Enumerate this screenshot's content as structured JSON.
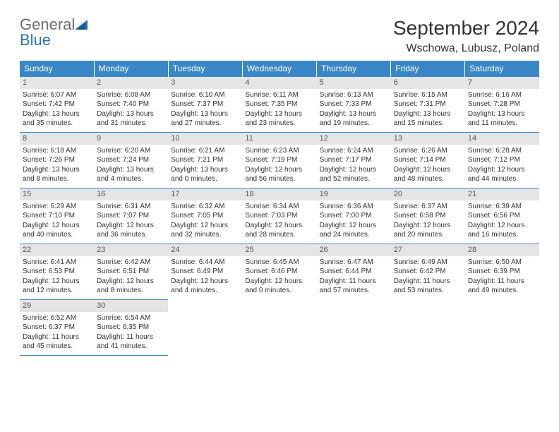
{
  "brand": {
    "part1": "General",
    "part2": "Blue"
  },
  "title": "September 2024",
  "location": "Wschowa, Lubusz, Poland",
  "colors": {
    "header_bg": "#3a87c8",
    "header_text": "#ffffff",
    "daynum_bg": "#e5e5e5",
    "rule": "#3a87c8",
    "body_text": "#333333",
    "logo_gray": "#6b6b6b",
    "logo_blue": "#2a74b8"
  },
  "typography": {
    "title_fontsize": 28,
    "location_fontsize": 16,
    "header_fontsize": 12,
    "cell_fontsize": 10,
    "font_family": "Arial"
  },
  "weekdays": [
    "Sunday",
    "Monday",
    "Tuesday",
    "Wednesday",
    "Thursday",
    "Friday",
    "Saturday"
  ],
  "days": [
    {
      "n": "1",
      "sunrise": "Sunrise: 6:07 AM",
      "sunset": "Sunset: 7:42 PM",
      "day1": "Daylight: 13 hours",
      "day2": "and 35 minutes."
    },
    {
      "n": "2",
      "sunrise": "Sunrise: 6:08 AM",
      "sunset": "Sunset: 7:40 PM",
      "day1": "Daylight: 13 hours",
      "day2": "and 31 minutes."
    },
    {
      "n": "3",
      "sunrise": "Sunrise: 6:10 AM",
      "sunset": "Sunset: 7:37 PM",
      "day1": "Daylight: 13 hours",
      "day2": "and 27 minutes."
    },
    {
      "n": "4",
      "sunrise": "Sunrise: 6:11 AM",
      "sunset": "Sunset: 7:35 PM",
      "day1": "Daylight: 13 hours",
      "day2": "and 23 minutes."
    },
    {
      "n": "5",
      "sunrise": "Sunrise: 6:13 AM",
      "sunset": "Sunset: 7:33 PM",
      "day1": "Daylight: 13 hours",
      "day2": "and 19 minutes."
    },
    {
      "n": "6",
      "sunrise": "Sunrise: 6:15 AM",
      "sunset": "Sunset: 7:31 PM",
      "day1": "Daylight: 13 hours",
      "day2": "and 15 minutes."
    },
    {
      "n": "7",
      "sunrise": "Sunrise: 6:16 AM",
      "sunset": "Sunset: 7:28 PM",
      "day1": "Daylight: 13 hours",
      "day2": "and 11 minutes."
    },
    {
      "n": "8",
      "sunrise": "Sunrise: 6:18 AM",
      "sunset": "Sunset: 7:26 PM",
      "day1": "Daylight: 13 hours",
      "day2": "and 8 minutes."
    },
    {
      "n": "9",
      "sunrise": "Sunrise: 6:20 AM",
      "sunset": "Sunset: 7:24 PM",
      "day1": "Daylight: 13 hours",
      "day2": "and 4 minutes."
    },
    {
      "n": "10",
      "sunrise": "Sunrise: 6:21 AM",
      "sunset": "Sunset: 7:21 PM",
      "day1": "Daylight: 13 hours",
      "day2": "and 0 minutes."
    },
    {
      "n": "11",
      "sunrise": "Sunrise: 6:23 AM",
      "sunset": "Sunset: 7:19 PM",
      "day1": "Daylight: 12 hours",
      "day2": "and 56 minutes."
    },
    {
      "n": "12",
      "sunrise": "Sunrise: 6:24 AM",
      "sunset": "Sunset: 7:17 PM",
      "day1": "Daylight: 12 hours",
      "day2": "and 52 minutes."
    },
    {
      "n": "13",
      "sunrise": "Sunrise: 6:26 AM",
      "sunset": "Sunset: 7:14 PM",
      "day1": "Daylight: 12 hours",
      "day2": "and 48 minutes."
    },
    {
      "n": "14",
      "sunrise": "Sunrise: 6:28 AM",
      "sunset": "Sunset: 7:12 PM",
      "day1": "Daylight: 12 hours",
      "day2": "and 44 minutes."
    },
    {
      "n": "15",
      "sunrise": "Sunrise: 6:29 AM",
      "sunset": "Sunset: 7:10 PM",
      "day1": "Daylight: 12 hours",
      "day2": "and 40 minutes."
    },
    {
      "n": "16",
      "sunrise": "Sunrise: 6:31 AM",
      "sunset": "Sunset: 7:07 PM",
      "day1": "Daylight: 12 hours",
      "day2": "and 36 minutes."
    },
    {
      "n": "17",
      "sunrise": "Sunrise: 6:32 AM",
      "sunset": "Sunset: 7:05 PM",
      "day1": "Daylight: 12 hours",
      "day2": "and 32 minutes."
    },
    {
      "n": "18",
      "sunrise": "Sunrise: 6:34 AM",
      "sunset": "Sunset: 7:03 PM",
      "day1": "Daylight: 12 hours",
      "day2": "and 28 minutes."
    },
    {
      "n": "19",
      "sunrise": "Sunrise: 6:36 AM",
      "sunset": "Sunset: 7:00 PM",
      "day1": "Daylight: 12 hours",
      "day2": "and 24 minutes."
    },
    {
      "n": "20",
      "sunrise": "Sunrise: 6:37 AM",
      "sunset": "Sunset: 6:58 PM",
      "day1": "Daylight: 12 hours",
      "day2": "and 20 minutes."
    },
    {
      "n": "21",
      "sunrise": "Sunrise: 6:39 AM",
      "sunset": "Sunset: 6:56 PM",
      "day1": "Daylight: 12 hours",
      "day2": "and 16 minutes."
    },
    {
      "n": "22",
      "sunrise": "Sunrise: 6:41 AM",
      "sunset": "Sunset: 6:53 PM",
      "day1": "Daylight: 12 hours",
      "day2": "and 12 minutes."
    },
    {
      "n": "23",
      "sunrise": "Sunrise: 6:42 AM",
      "sunset": "Sunset: 6:51 PM",
      "day1": "Daylight: 12 hours",
      "day2": "and 8 minutes."
    },
    {
      "n": "24",
      "sunrise": "Sunrise: 6:44 AM",
      "sunset": "Sunset: 6:49 PM",
      "day1": "Daylight: 12 hours",
      "day2": "and 4 minutes."
    },
    {
      "n": "25",
      "sunrise": "Sunrise: 6:45 AM",
      "sunset": "Sunset: 6:46 PM",
      "day1": "Daylight: 12 hours",
      "day2": "and 0 minutes."
    },
    {
      "n": "26",
      "sunrise": "Sunrise: 6:47 AM",
      "sunset": "Sunset: 6:44 PM",
      "day1": "Daylight: 11 hours",
      "day2": "and 57 minutes."
    },
    {
      "n": "27",
      "sunrise": "Sunrise: 6:49 AM",
      "sunset": "Sunset: 6:42 PM",
      "day1": "Daylight: 11 hours",
      "day2": "and 53 minutes."
    },
    {
      "n": "28",
      "sunrise": "Sunrise: 6:50 AM",
      "sunset": "Sunset: 6:39 PM",
      "day1": "Daylight: 11 hours",
      "day2": "and 49 minutes."
    },
    {
      "n": "29",
      "sunrise": "Sunrise: 6:52 AM",
      "sunset": "Sunset: 6:37 PM",
      "day1": "Daylight: 11 hours",
      "day2": "and 45 minutes."
    },
    {
      "n": "30",
      "sunrise": "Sunrise: 6:54 AM",
      "sunset": "Sunset: 6:35 PM",
      "day1": "Daylight: 11 hours",
      "day2": "and 41 minutes."
    }
  ]
}
